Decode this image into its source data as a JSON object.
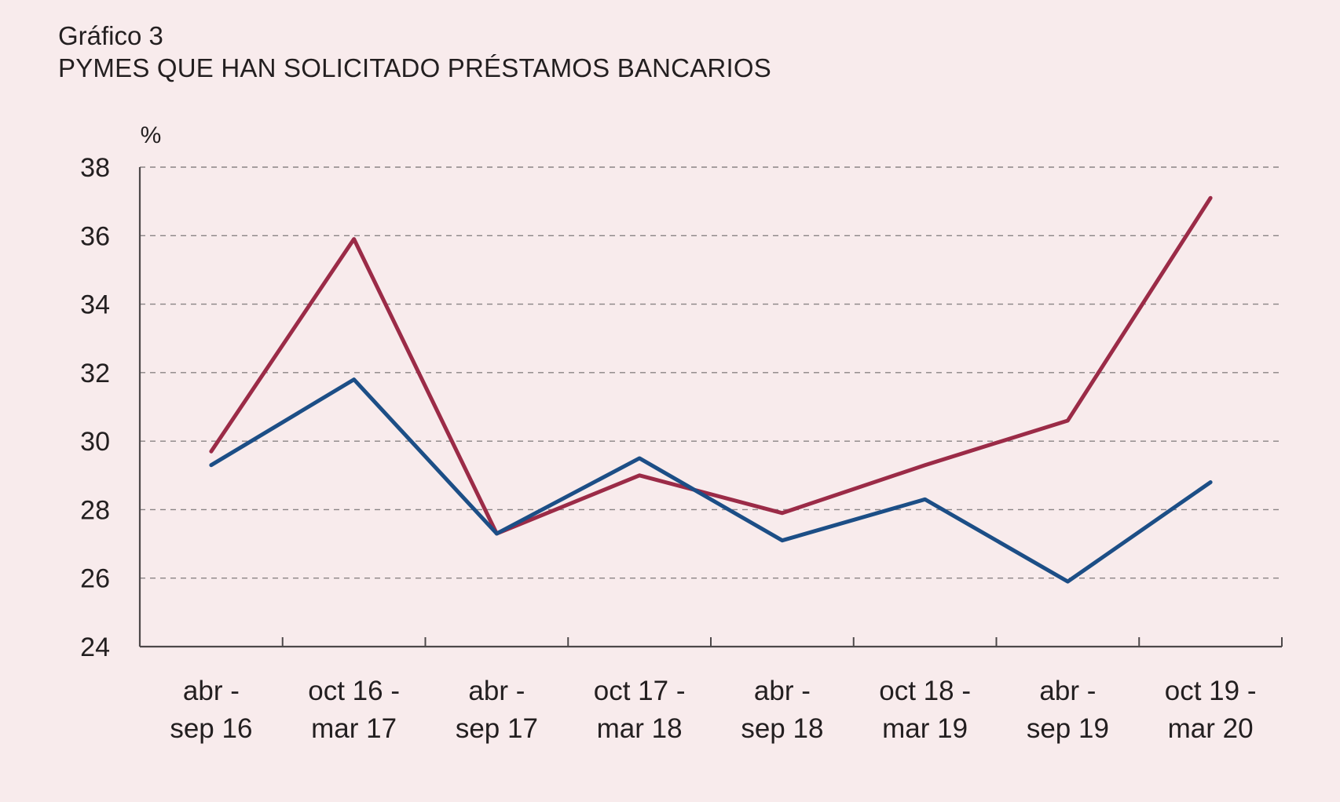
{
  "header": {
    "chart_number": "Gráfico 3",
    "title": "PYMES QUE HAN SOLICITADO PRÉSTAMOS BANCARIOS"
  },
  "chart_data": {
    "type": "line",
    "unit_label": "%",
    "ylim": [
      24,
      38
    ],
    "yticks": [
      24,
      26,
      28,
      30,
      32,
      34,
      36,
      38
    ],
    "grid": true,
    "categories": [
      [
        "abr -",
        "sep 16"
      ],
      [
        "oct 16 -",
        "mar 17"
      ],
      [
        "abr -",
        "sep 17"
      ],
      [
        "oct 17 -",
        "mar 18"
      ],
      [
        "abr -",
        "sep 18"
      ],
      [
        "oct 18 -",
        "mar 19"
      ],
      [
        "abr -",
        "sep 19"
      ],
      [
        "oct 19 -",
        "mar 20"
      ]
    ],
    "series": [
      {
        "color": "#9b2b47",
        "values": [
          29.7,
          35.9,
          27.3,
          29.0,
          27.9,
          29.3,
          30.6,
          37.1
        ]
      },
      {
        "color": "#1c4e86",
        "values": [
          29.3,
          31.8,
          27.3,
          29.5,
          27.1,
          28.3,
          25.9,
          28.8
        ]
      }
    ]
  }
}
